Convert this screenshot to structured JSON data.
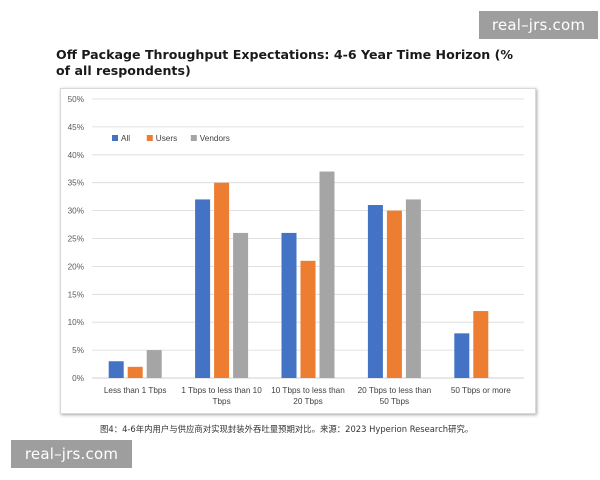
{
  "watermarks": {
    "top": "real–jrs.com",
    "bottom": "real–jrs.com"
  },
  "caption": "图4：4-6年内用户与供应商对实现封装外吞吐量预期对比。来源：2023 Hyperion Research研究。",
  "chart_data": {
    "type": "bar",
    "title": "Off Package Throughput Expectations: 4-6 Year Time Horizon (% of all respondents)",
    "xlabel": "",
    "ylabel": "",
    "ylim": [
      0,
      50
    ],
    "yticks": [
      "0%",
      "5%",
      "10%",
      "15%",
      "20%",
      "25%",
      "30%",
      "35%",
      "40%",
      "45%",
      "50%"
    ],
    "grid": true,
    "legend_position": "top-left",
    "categories": [
      [
        "Less than 1 Tbps"
      ],
      [
        "1 Tbps to less than 10",
        "Tbps"
      ],
      [
        "10 Tbps to less than",
        "20 Tbps"
      ],
      [
        "20 Tbps to less than",
        "50 Tbps"
      ],
      [
        "50 Tbps or more"
      ]
    ],
    "series": [
      {
        "name": "All",
        "color": "#4472c4",
        "values": [
          3,
          32,
          26,
          31,
          8
        ]
      },
      {
        "name": "Users",
        "color": "#ed7d31",
        "values": [
          2,
          35,
          21,
          30,
          12
        ]
      },
      {
        "name": "Vendors",
        "color": "#a5a5a5",
        "values": [
          5,
          26,
          37,
          32,
          null
        ]
      }
    ]
  }
}
